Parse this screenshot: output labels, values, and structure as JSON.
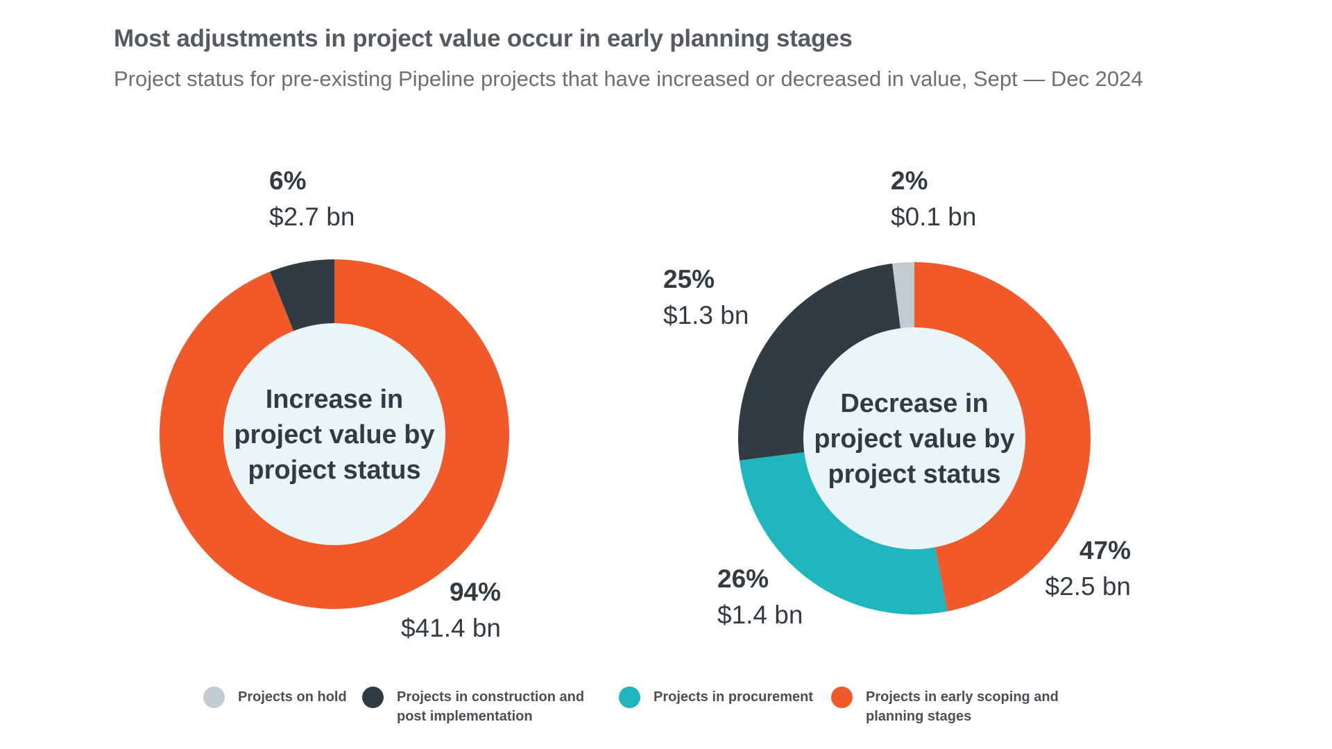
{
  "title": "Most adjustments in project value occur in early planning stages",
  "subtitle": "Project status for pre-existing Pipeline projects that have increased or decreased in value, Sept — Dec 2024",
  "colors": {
    "on_hold": "#c4cbd0",
    "construction": "#323a42",
    "procurement": "#1eb5bd",
    "early_scoping": "#f05a2b",
    "center_fill": "#e9f5f6",
    "label_text": "#323a42"
  },
  "legend": [
    {
      "key": "on_hold",
      "label": "Projects on hold"
    },
    {
      "key": "construction",
      "label": "Projects in construction and post implementation"
    },
    {
      "key": "procurement",
      "label": "Projects in procurement"
    },
    {
      "key": "early_scoping",
      "label": "Projects in early scoping and planning stages"
    }
  ],
  "chart_data": [
    {
      "type": "pie",
      "center_label": [
        "Increase in",
        "project value by",
        "project status"
      ],
      "slices": [
        {
          "key": "early_scoping",
          "percent_label": "94%",
          "value_label": "$41.4 bn",
          "value": 41.4,
          "percent": 94
        },
        {
          "key": "construction",
          "percent_label": "6%",
          "value_label": "$2.7 bn",
          "value": 2.7,
          "percent": 6
        }
      ]
    },
    {
      "type": "pie",
      "center_label": [
        "Decrease in",
        "project value by",
        "project status"
      ],
      "slices": [
        {
          "key": "early_scoping",
          "percent_label": "47%",
          "value_label": "$2.5 bn",
          "value": 2.5,
          "percent": 47
        },
        {
          "key": "procurement",
          "percent_label": "26%",
          "value_label": "$1.4 bn",
          "value": 1.4,
          "percent": 26
        },
        {
          "key": "construction",
          "percent_label": "25%",
          "value_label": "$1.3 bn",
          "value": 1.3,
          "percent": 25
        },
        {
          "key": "on_hold",
          "percent_label": "2%",
          "value_label": "$0.1 bn",
          "value": 0.1,
          "percent": 2
        }
      ]
    }
  ]
}
